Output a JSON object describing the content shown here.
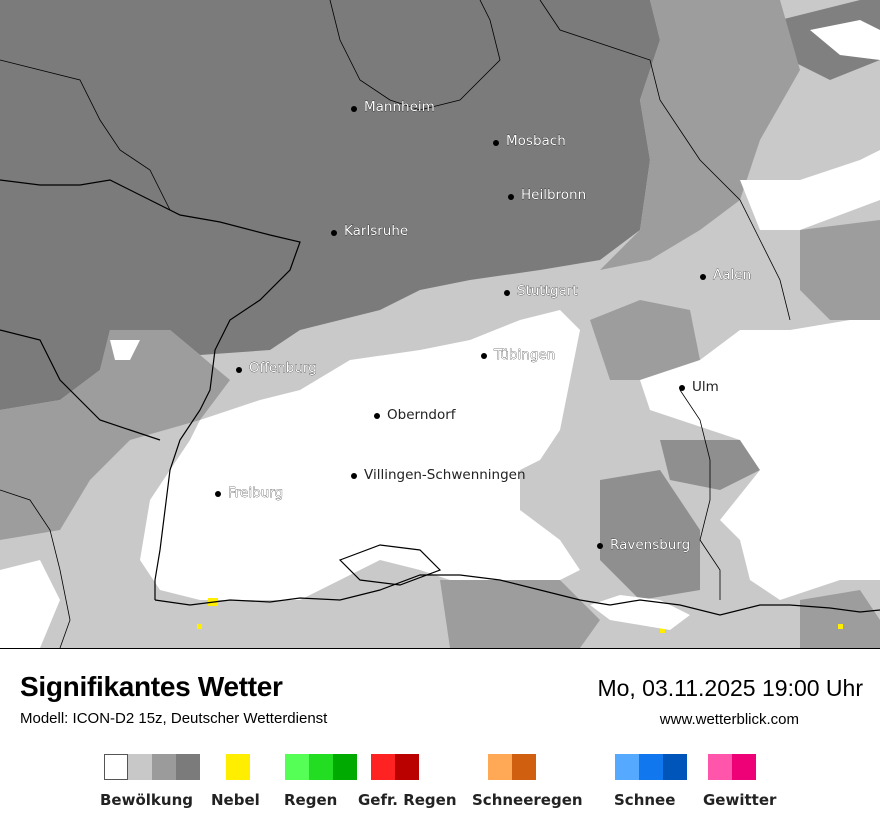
{
  "map": {
    "cities": [
      {
        "name": "Mannheim"
      },
      {
        "name": "Mosbach"
      },
      {
        "name": "Heilbronn"
      },
      {
        "name": "Karlsruhe"
      },
      {
        "name": "Stuttgart"
      },
      {
        "name": "Aalen"
      },
      {
        "name": "Tübingen"
      },
      {
        "name": "Offenburg"
      },
      {
        "name": "Ulm"
      },
      {
        "name": "Oberndorf"
      },
      {
        "name": "Villingen-Schwenningen"
      },
      {
        "name": "Freiburg"
      },
      {
        "name": "Ravensburg"
      }
    ]
  },
  "footer": {
    "title": "Signifikantes Wetter",
    "model": "Modell: ICON-D2 15z, Deutscher Wetterdienst",
    "datetime": "Mo, 03.11.2025 19:00 Uhr",
    "url": "www.wetterblick.com"
  },
  "legend": [
    {
      "label": "Bewölkung",
      "colors": [
        "#ffffff",
        "#c8c8c8",
        "#9b9b9b",
        "#7b7b7b"
      ]
    },
    {
      "label": "Nebel",
      "colors": [
        "#ffee00"
      ]
    },
    {
      "label": "Regen",
      "colors": [
        "#55ff55",
        "#22dd22",
        "#00aa00"
      ]
    },
    {
      "label": "Gefr. Regen",
      "colors": [
        "#ff2222",
        "#bb0000"
      ]
    },
    {
      "label": "Schneeregen",
      "colors": [
        "#ffa855",
        "#d06010"
      ]
    },
    {
      "label": "Schnee",
      "colors": [
        "#55aaff",
        "#1177ee",
        "#0055bb"
      ]
    },
    {
      "label": "Gewitter",
      "colors": [
        "#ff55aa",
        "#ee0077"
      ]
    }
  ]
}
